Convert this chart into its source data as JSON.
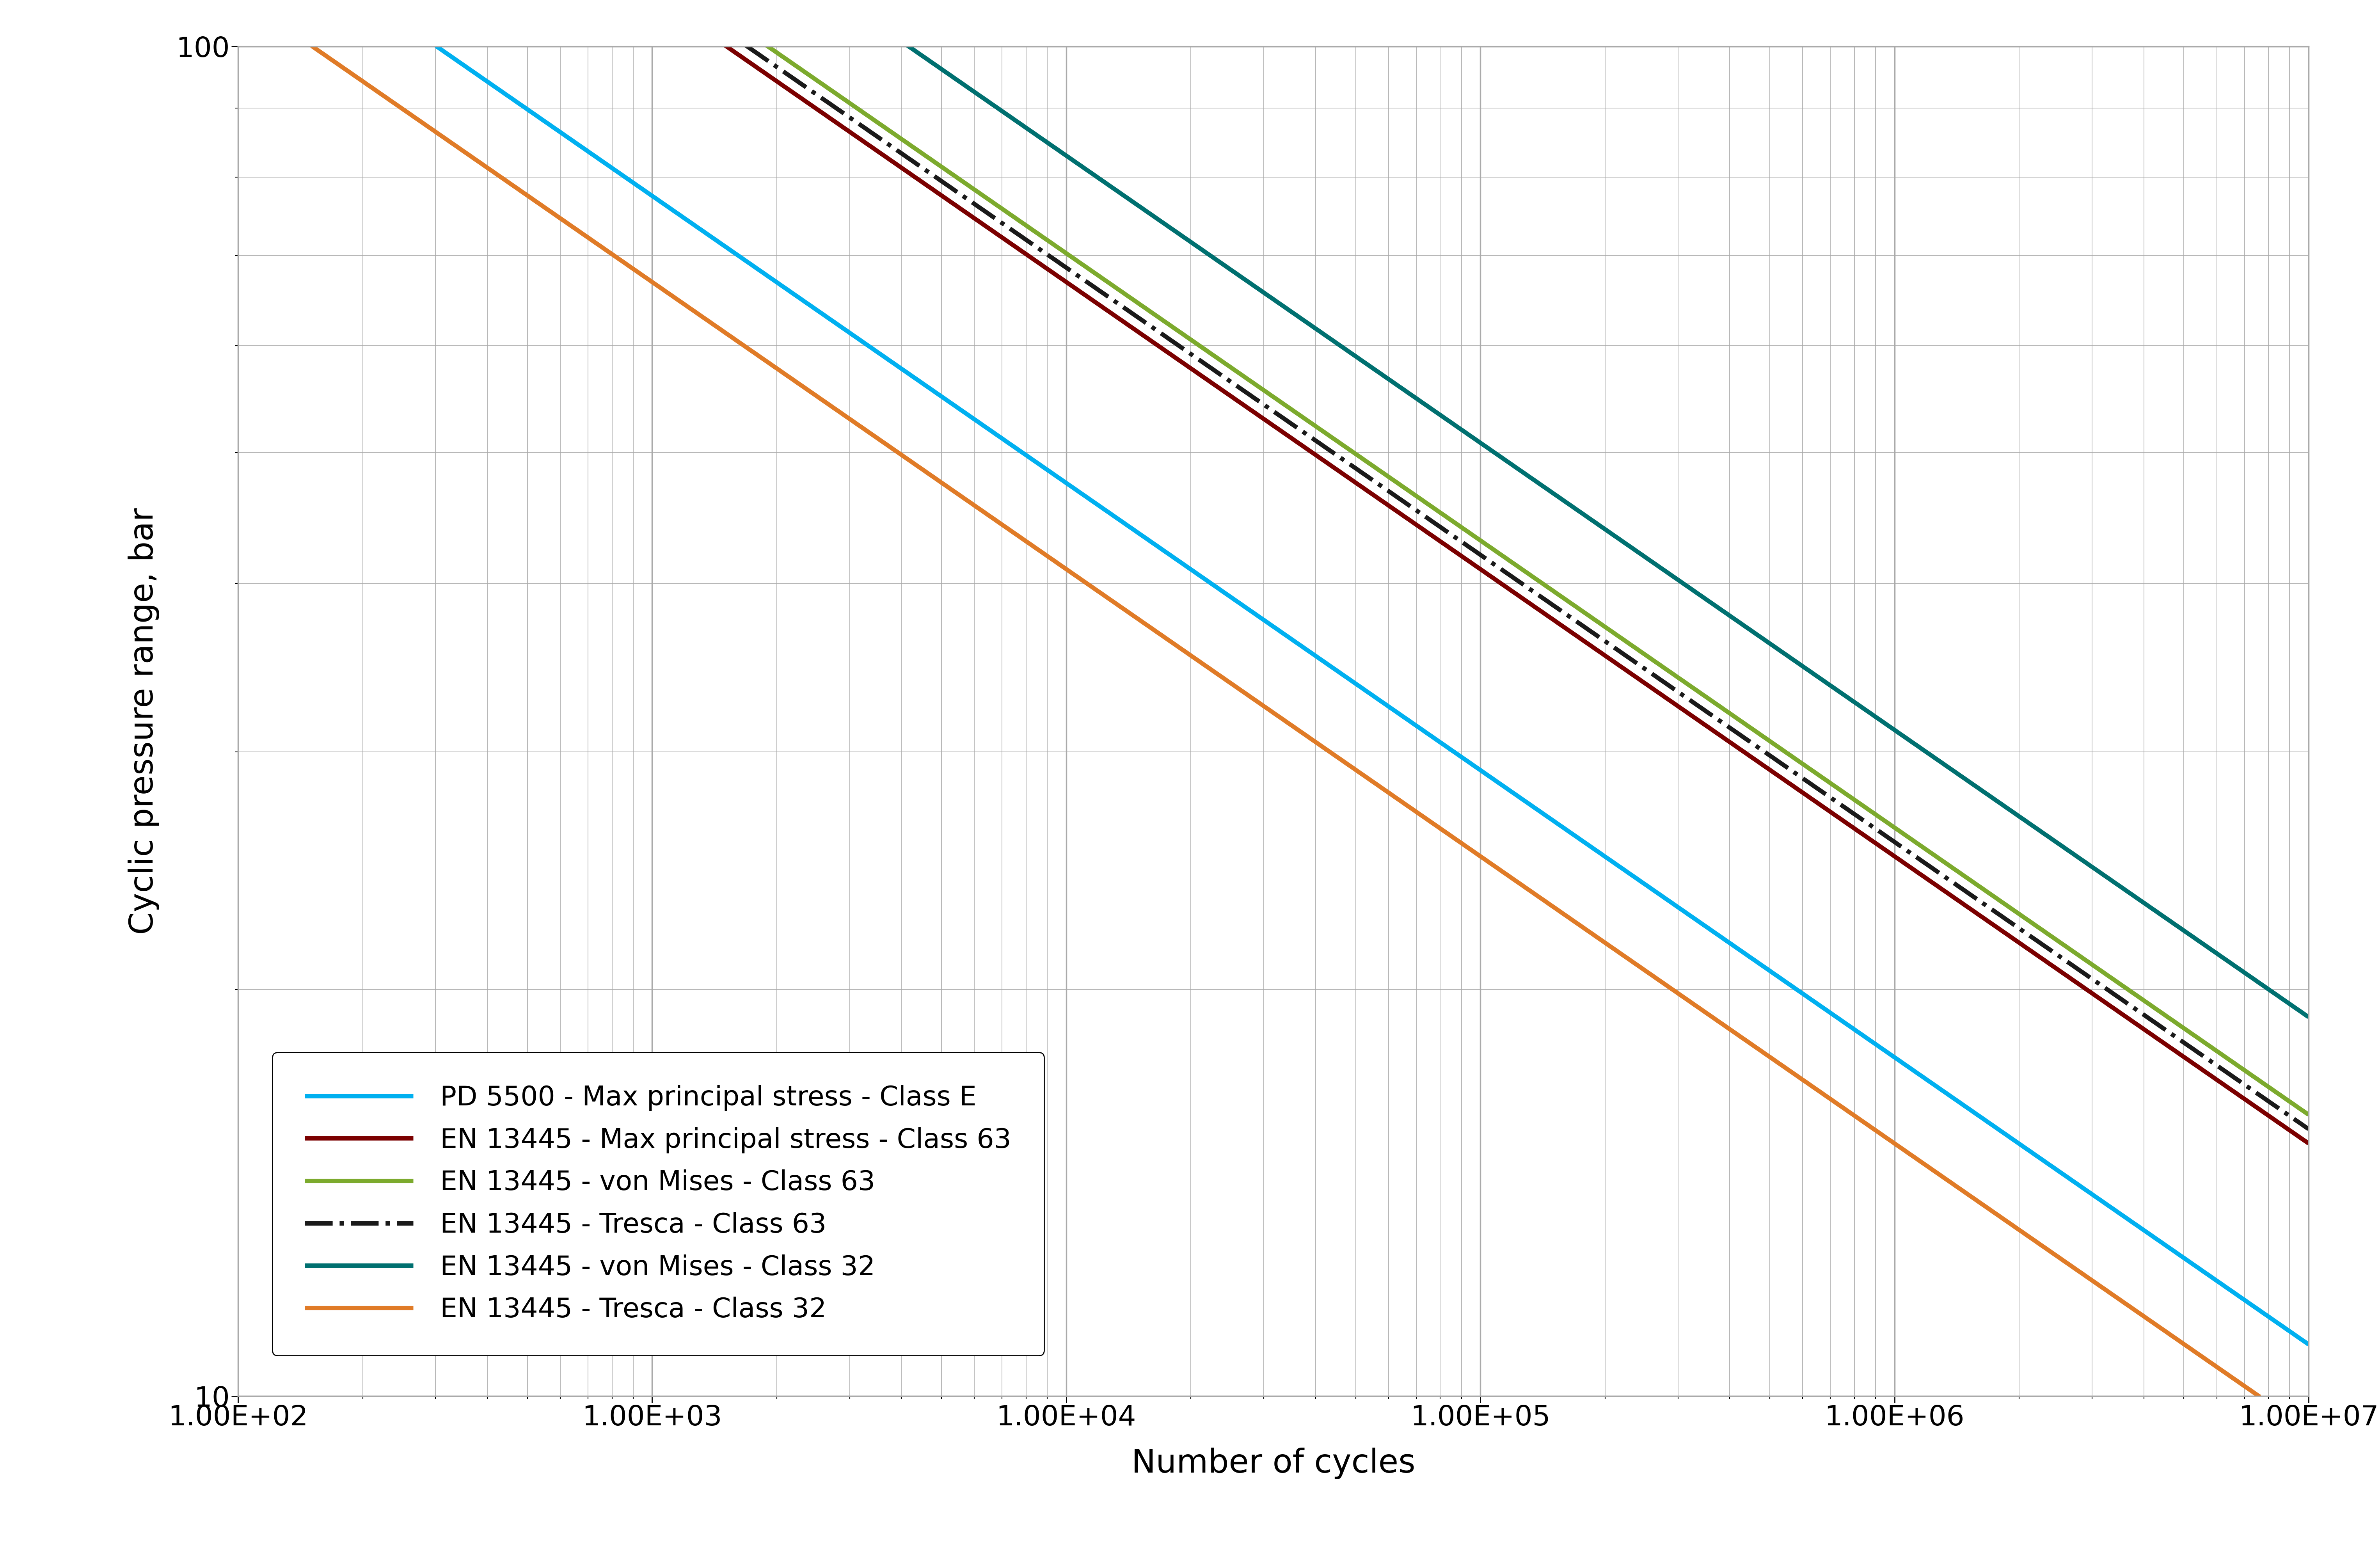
{
  "title": "",
  "xlabel": "Number of cycles",
  "ylabel": "Cyclic pressure range, bar",
  "xlim_log": [
    2,
    7
  ],
  "ylim_log": [
    1,
    2
  ],
  "background_color": "#ffffff",
  "grid_color": "#aaaaaa",
  "series": [
    {
      "label": "PD 5500 - Max principal stress - Class E",
      "color": "#00b0f0",
      "linestyle": "-",
      "linewidth": 8,
      "anchor_log_x": 2.48,
      "anchor_log_y": 2.0
    },
    {
      "label": "EN 13445 - Max principal stress - Class 63",
      "color": "#7b0000",
      "linestyle": "-",
      "linewidth": 8,
      "anchor_log_x": 3.18,
      "anchor_log_y": 2.0
    },
    {
      "label": "EN 13445 - von Mises - Class 63",
      "color": "#7caa2d",
      "linestyle": "-",
      "linewidth": 8,
      "anchor_log_x": 3.28,
      "anchor_log_y": 2.0
    },
    {
      "label": "EN 13445 - Tresca - Class 63",
      "color": "#1a1a1a",
      "linestyle": "-.",
      "linewidth": 8,
      "anchor_log_x": 3.23,
      "anchor_log_y": 2.0
    },
    {
      "label": "EN 13445 - von Mises - Class 32",
      "color": "#007070",
      "linestyle": "-",
      "linewidth": 8,
      "anchor_log_x": 3.62,
      "anchor_log_y": 2.0
    },
    {
      "label": "EN 13445 - Tresca - Class 32",
      "color": "#e07b27",
      "linestyle": "-",
      "linewidth": 8,
      "anchor_log_x": 2.18,
      "anchor_log_y": 2.0
    }
  ],
  "slope": -0.2128,
  "xtick_labels": [
    "1.00E+02",
    "1.00E+03",
    "1.00E+04",
    "1.00E+05",
    "1.00E+06",
    "1.00E+07"
  ],
  "ytick_labels": [
    "10",
    "100"
  ],
  "font_size": 56,
  "tick_font_size": 52,
  "label_font_size": 60,
  "legend_font_size": 50
}
